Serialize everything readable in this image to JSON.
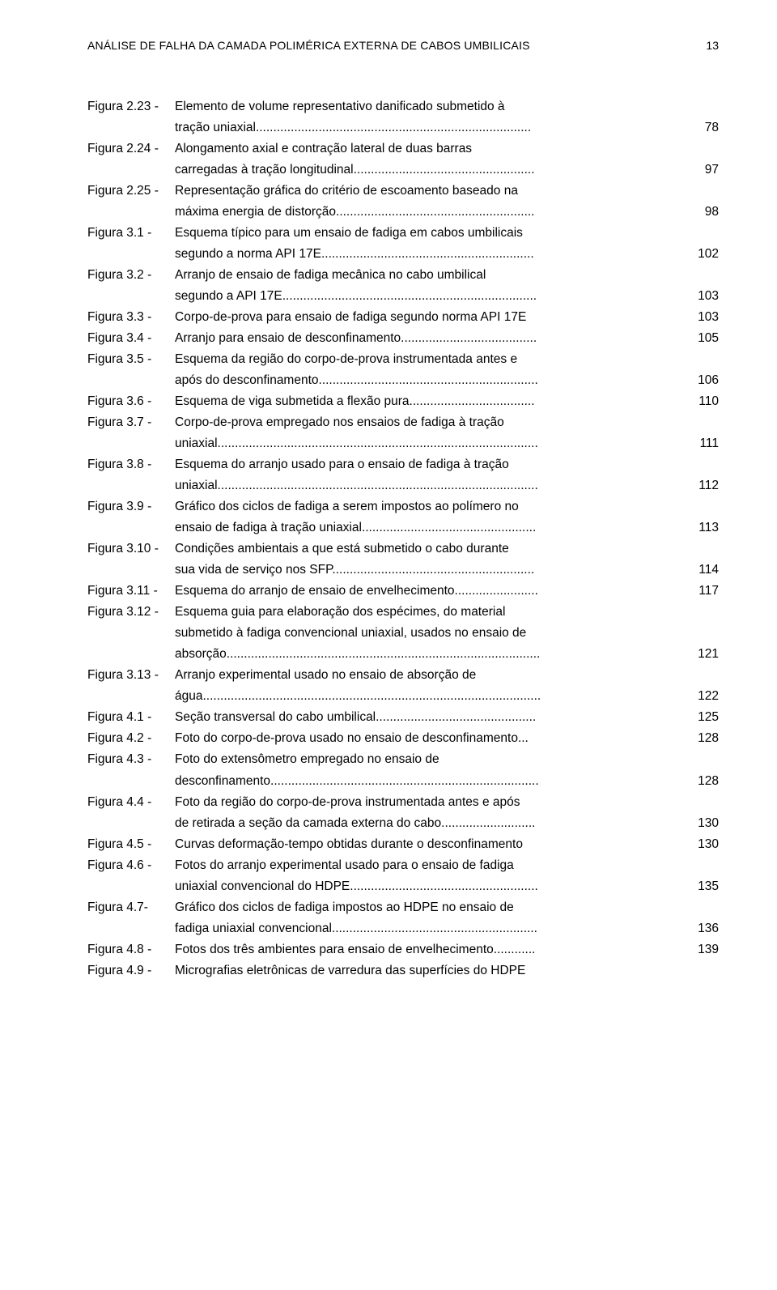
{
  "header": {
    "title": "ANÁLISE DE FALHA DA CAMADA POLIMÉRICA EXTERNA DE CABOS UMBILICAIS",
    "page_number": "13"
  },
  "entries": [
    {
      "label": "Figura 2.23 -",
      "lines": [
        {
          "text": "Elemento de volume representativo danificado submetido à",
          "page": ""
        },
        {
          "text": "tração uniaxial...............................................................................",
          "page": "78"
        }
      ]
    },
    {
      "label": "Figura 2.24 -",
      "lines": [
        {
          "text": "Alongamento axial e contração lateral de duas barras",
          "page": ""
        },
        {
          "text": "carregadas à tração longitudinal....................................................",
          "page": "97"
        }
      ]
    },
    {
      "label": "Figura 2.25 -",
      "lines": [
        {
          "text": "Representação gráfica do critério de escoamento baseado na",
          "page": ""
        },
        {
          "text": "máxima energia de distorção.........................................................",
          "page": "98"
        }
      ]
    },
    {
      "label": "Figura 3.1 -",
      "lines": [
        {
          "text": "Esquema típico para um ensaio de fadiga em cabos umbilicais",
          "page": ""
        },
        {
          "text": "segundo a norma API 17E.............................................................",
          "page": "102"
        }
      ]
    },
    {
      "label": "Figura 3.2 -",
      "lines": [
        {
          "text": "Arranjo de ensaio de fadiga mecânica no cabo umbilical",
          "page": ""
        },
        {
          "text": "segundo a API 17E.........................................................................",
          "page": "103"
        }
      ]
    },
    {
      "label": "Figura 3.3 -",
      "lines": [
        {
          "text": "Corpo-de-prova para ensaio de fadiga segundo norma API 17E",
          "page": "103"
        }
      ]
    },
    {
      "label": "Figura 3.4 -",
      "lines": [
        {
          "text": "Arranjo para ensaio de desconfinamento.......................................",
          "page": "105"
        }
      ]
    },
    {
      "label": "Figura 3.5 -",
      "lines": [
        {
          "text": "Esquema da região do corpo-de-prova instrumentada antes e",
          "page": ""
        },
        {
          "text": "após do desconfinamento...............................................................",
          "page": "106"
        }
      ]
    },
    {
      "label": "Figura 3.6 -",
      "lines": [
        {
          "text": "Esquema de viga submetida a flexão pura....................................",
          "page": "110"
        }
      ]
    },
    {
      "label": "Figura 3.7 -",
      "lines": [
        {
          "text": "Corpo-de-prova empregado nos ensaios de fadiga à tração",
          "page": ""
        },
        {
          "text": "uniaxial............................................................................................",
          "page": "111"
        }
      ]
    },
    {
      "label": "Figura 3.8 -",
      "lines": [
        {
          "text": "Esquema do arranjo usado para o ensaio de fadiga à tração",
          "page": ""
        },
        {
          "text": "uniaxial............................................................................................",
          "page": "112"
        }
      ]
    },
    {
      "label": "Figura 3.9 -",
      "lines": [
        {
          "text": "Gráfico dos ciclos de fadiga a serem impostos ao polímero no",
          "page": ""
        },
        {
          "text": "ensaio de fadiga à tração uniaxial..................................................",
          "page": "113"
        }
      ]
    },
    {
      "label": "Figura 3.10 -",
      "lines": [
        {
          "text": "Condições ambientais a que está submetido o cabo durante",
          "page": ""
        },
        {
          "text": "sua vida de serviço nos SFP..........................................................",
          "page": "114"
        }
      ]
    },
    {
      "label": "Figura 3.11 -",
      "lines": [
        {
          "text": "Esquema do arranjo de ensaio de envelhecimento........................",
          "page": "117"
        }
      ]
    },
    {
      "label": "Figura 3.12 -",
      "lines": [
        {
          "text": "Esquema guia para elaboração dos espécimes, do material",
          "page": ""
        },
        {
          "text": "submetido à fadiga convencional uniaxial, usados no ensaio de",
          "page": ""
        },
        {
          "text": "absorção..........................................................................................",
          "page": "121"
        }
      ]
    },
    {
      "label": "Figura 3.13 -",
      "lines": [
        {
          "text": "Arranjo experimental usado no ensaio de absorção de",
          "page": ""
        },
        {
          "text": "água.................................................................................................",
          "page": "122"
        }
      ]
    },
    {
      "label": "Figura 4.1 -",
      "lines": [
        {
          "text": "Seção transversal do cabo umbilical..............................................",
          "page": "125"
        }
      ]
    },
    {
      "label": "Figura 4.2 -",
      "lines": [
        {
          "text": "Foto do corpo-de-prova usado no ensaio de desconfinamento...",
          "page": "128"
        }
      ]
    },
    {
      "label": "Figura 4.3 -",
      "lines": [
        {
          "text": "Foto do extensômetro empregado no ensaio de",
          "page": ""
        },
        {
          "text": "desconfinamento.............................................................................",
          "page": "128"
        }
      ]
    },
    {
      "label": "Figura 4.4 -",
      "lines": [
        {
          "text": "Foto da região do corpo-de-prova instrumentada antes e após",
          "page": ""
        },
        {
          "text": "de retirada a seção da camada externa do cabo...........................",
          "page": "130"
        }
      ]
    },
    {
      "label": "Figura 4.5 -",
      "lines": [
        {
          "text": "Curvas deformação-tempo obtidas durante o desconfinamento",
          "page": "130"
        }
      ]
    },
    {
      "label": "Figura 4.6 -",
      "lines": [
        {
          "text": "Fotos do arranjo experimental usado para o ensaio de fadiga",
          "page": ""
        },
        {
          "text": "uniaxial convencional do HDPE......................................................",
          "page": "135"
        }
      ]
    },
    {
      "label": "Figura 4.7-",
      "lines": [
        {
          "text": "Gráfico dos ciclos de fadiga impostos ao HDPE no ensaio de",
          "page": ""
        },
        {
          "text": "fadiga uniaxial convencional...........................................................",
          "page": "136"
        }
      ]
    },
    {
      "label": "Figura 4.8 -",
      "lines": [
        {
          "text": "Fotos dos três ambientes para ensaio de envelhecimento............",
          "page": "139"
        }
      ]
    },
    {
      "label": "Figura 4.9 -",
      "lines": [
        {
          "text": "Micrografias eletrônicas de varredura das superfícies do HDPE",
          "page": ""
        }
      ]
    }
  ]
}
